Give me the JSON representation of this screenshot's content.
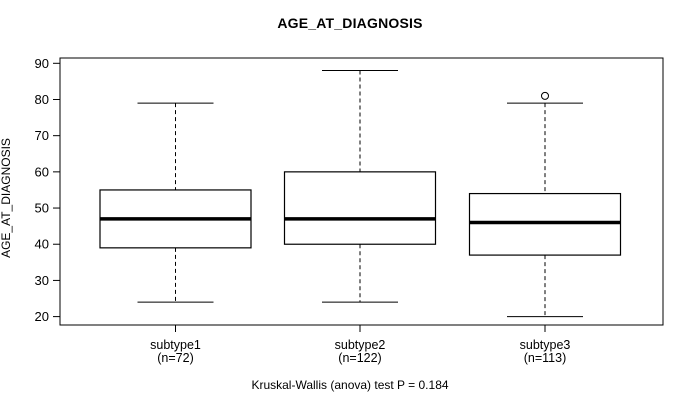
{
  "title": "AGE_AT_DIAGNOSIS",
  "caption": "Kruskal-Wallis (anova) test P = 0.184",
  "y_axis": {
    "label": "AGE_AT_DIAGNOSIS",
    "ticks": [
      20,
      30,
      40,
      50,
      60,
      70,
      80,
      90
    ]
  },
  "chart_data": {
    "type": "boxplot",
    "title": "AGE_AT_DIAGNOSIS",
    "ylabel": "AGE_AT_DIAGNOSIS",
    "xlabel": "",
    "ylim": [
      17.5,
      91.5
    ],
    "yticks": [
      20,
      30,
      40,
      50,
      60,
      70,
      80,
      90
    ],
    "grid": false,
    "legend": false,
    "annotation": "Kruskal-Wallis (anova) test P = 0.184",
    "categories": [
      "subtype1",
      "subtype2",
      "subtype3"
    ],
    "category_sublabels": [
      "(n=72)",
      "(n=122)",
      "(n=113)"
    ],
    "series": [
      {
        "name": "subtype1",
        "n": 72,
        "whisker_low": 24,
        "q1": 39,
        "median": 47,
        "q3": 55,
        "whisker_high": 79,
        "outliers": []
      },
      {
        "name": "subtype2",
        "n": 122,
        "whisker_low": 24,
        "q1": 40,
        "median": 47,
        "q3": 60,
        "whisker_high": 88,
        "outliers": []
      },
      {
        "name": "subtype3",
        "n": 113,
        "whisker_low": 20,
        "q1": 37,
        "median": 46,
        "q3": 54,
        "whisker_high": 79,
        "outliers": [
          81
        ]
      }
    ],
    "colors": {
      "line": "#000000",
      "box_fill": "#ffffff",
      "background": "#ffffff"
    }
  }
}
